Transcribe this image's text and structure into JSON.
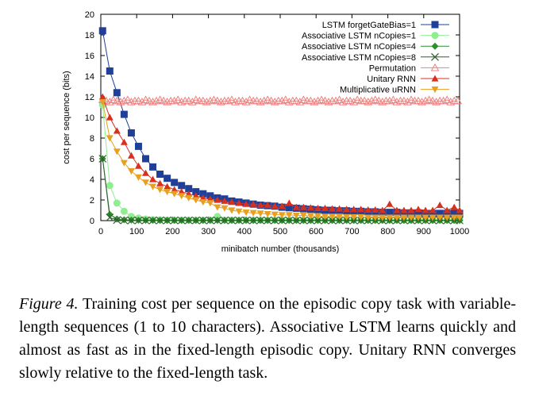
{
  "chart_data": {
    "type": "line",
    "xlabel": "minibatch number (thousands)",
    "ylabel": "cost per sequence (bits)",
    "xlim": [
      0,
      1000
    ],
    "ylim": [
      0,
      20
    ],
    "xticks": [
      0,
      100,
      200,
      300,
      400,
      500,
      600,
      700,
      800,
      900,
      1000
    ],
    "yticks": [
      0,
      2,
      4,
      6,
      8,
      10,
      12,
      14,
      16,
      18,
      20
    ],
    "grid": false,
    "legend_position": "top-right",
    "series": [
      {
        "name": "LSTM forgetGateBias=1",
        "color": "#1f3f99",
        "marker": "square-filled",
        "x": [
          5,
          25,
          45,
          65,
          85,
          105,
          125,
          145,
          165,
          185,
          205,
          225,
          245,
          265,
          285,
          305,
          325,
          345,
          365,
          385,
          405,
          425,
          445,
          465,
          485,
          505,
          525,
          545,
          565,
          585,
          605,
          625,
          645,
          665,
          685,
          705,
          725,
          745,
          765,
          785,
          805,
          825,
          845,
          865,
          885,
          905,
          925,
          945,
          965,
          985,
          1000
        ],
        "y": [
          18.4,
          14.5,
          12.4,
          10.3,
          8.5,
          7.2,
          6.0,
          5.2,
          4.5,
          4.1,
          3.7,
          3.4,
          3.1,
          2.8,
          2.6,
          2.4,
          2.2,
          2.1,
          1.9,
          1.8,
          1.7,
          1.6,
          1.5,
          1.45,
          1.4,
          1.3,
          1.25,
          1.2,
          1.15,
          1.1,
          1.05,
          1.0,
          1.0,
          0.95,
          0.95,
          0.9,
          0.9,
          0.85,
          0.85,
          0.8,
          0.8,
          0.8,
          0.75,
          0.75,
          0.75,
          0.7,
          0.7,
          0.7,
          0.7,
          0.7,
          0.7
        ]
      },
      {
        "name": "Associative LSTM nCopies=1",
        "color": "#90ee90",
        "marker": "circle-filled",
        "x": [
          5,
          25,
          45,
          65,
          85,
          105,
          125,
          145,
          165,
          185,
          205,
          225,
          245,
          265,
          285,
          305,
          325,
          345,
          365,
          385,
          405,
          425,
          445,
          465,
          485,
          505,
          525,
          545,
          565,
          585,
          605,
          625,
          645,
          665,
          685,
          705,
          725,
          745,
          765,
          785,
          805,
          825,
          845,
          865,
          885,
          905,
          925,
          945,
          965,
          985,
          1000
        ],
        "y": [
          11.2,
          3.4,
          1.7,
          0.9,
          0.4,
          0.25,
          0.15,
          0.1,
          0.08,
          0.06,
          0.05,
          0.05,
          0.05,
          0.05,
          0.05,
          0.05,
          0.4,
          0.05,
          0.05,
          0.05,
          0.05,
          0.05,
          0.05,
          0.05,
          0.05,
          0.05,
          0.05,
          0.05,
          0.05,
          0.05,
          0.05,
          0.05,
          0.05,
          0.05,
          0.05,
          0.05,
          0.05,
          0.05,
          0.05,
          0.05,
          0.05,
          0.05,
          0.05,
          0.05,
          0.05,
          0.05,
          0.05,
          0.05,
          0.05,
          0.05,
          0.05
        ]
      },
      {
        "name": "Associative LSTM nCopies=4",
        "color": "#2f8f2f",
        "marker": "diamond-filled",
        "x": [
          5,
          25,
          45,
          65,
          85,
          105,
          125,
          145,
          165,
          185,
          205,
          225,
          245,
          265,
          285,
          305,
          325,
          345,
          365,
          385,
          405,
          425,
          445,
          465,
          485,
          505,
          525,
          545,
          565,
          585,
          605,
          625,
          645,
          665,
          685,
          705,
          725,
          745,
          765,
          785,
          805,
          825,
          845,
          865,
          885,
          905,
          925,
          945,
          965,
          985,
          1000
        ],
        "y": [
          6.0,
          0.6,
          0.15,
          0.08,
          0.05,
          0.04,
          0.03,
          0.03,
          0.03,
          0.03,
          0.03,
          0.03,
          0.03,
          0.03,
          0.03,
          0.03,
          0.03,
          0.03,
          0.03,
          0.03,
          0.03,
          0.03,
          0.03,
          0.03,
          0.03,
          0.03,
          0.03,
          0.03,
          0.03,
          0.03,
          0.03,
          0.03,
          0.03,
          0.03,
          0.03,
          0.03,
          0.03,
          0.03,
          0.03,
          0.03,
          0.03,
          0.03,
          0.03,
          0.03,
          0.03,
          0.03,
          0.03,
          0.03,
          0.03,
          0.03,
          0.03
        ]
      },
      {
        "name": "Associative LSTM nCopies=8",
        "color": "#2f5f2f",
        "marker": "x",
        "x": [
          5,
          25,
          45,
          65,
          85,
          105,
          125,
          145,
          165,
          185,
          205,
          225,
          245,
          265,
          285,
          305,
          325,
          345,
          365,
          385,
          405,
          425,
          445,
          465,
          485,
          505,
          525,
          545,
          565,
          585,
          605,
          625,
          645,
          665,
          685,
          705,
          725,
          745,
          765,
          785,
          805,
          825,
          845,
          865,
          885,
          905,
          925,
          945,
          965,
          985,
          1000
        ],
        "y": [
          6.0,
          0.3,
          0.05,
          0.02,
          0.02,
          0.02,
          0.02,
          0.02,
          0.02,
          0.02,
          0.02,
          0.02,
          0.02,
          0.02,
          0.02,
          0.02,
          0.02,
          0.02,
          0.02,
          0.02,
          0.02,
          0.02,
          0.02,
          0.02,
          0.02,
          0.02,
          0.02,
          0.02,
          0.02,
          0.02,
          0.02,
          0.02,
          0.02,
          0.02,
          0.02,
          0.02,
          0.02,
          0.02,
          0.02,
          0.02,
          0.02,
          0.02,
          0.02,
          0.02,
          0.02,
          0.02,
          0.02,
          0.02,
          0.02,
          0.02,
          0.02
        ]
      },
      {
        "name": "Permutation",
        "color": "#f08080",
        "marker": "triangle-open",
        "x": [
          5,
          15,
          25,
          35,
          45,
          55,
          65,
          75,
          85,
          95,
          105,
          115,
          125,
          135,
          145,
          155,
          165,
          175,
          185,
          195,
          205,
          215,
          225,
          235,
          245,
          255,
          265,
          275,
          285,
          295,
          305,
          315,
          325,
          335,
          345,
          355,
          365,
          375,
          385,
          395,
          405,
          415,
          425,
          435,
          445,
          455,
          465,
          475,
          485,
          495,
          505,
          515,
          525,
          535,
          545,
          555,
          565,
          575,
          585,
          595,
          605,
          615,
          625,
          635,
          645,
          655,
          665,
          675,
          685,
          695,
          705,
          715,
          725,
          735,
          745,
          755,
          765,
          775,
          785,
          795,
          805,
          815,
          825,
          835,
          845,
          855,
          865,
          875,
          885,
          895,
          905,
          915,
          925,
          935,
          945,
          955,
          965,
          975,
          985,
          995
        ],
        "y": [
          11.7,
          11.6,
          11.5,
          11.7,
          11.6,
          11.5,
          11.6,
          11.7,
          11.5,
          11.6,
          11.6,
          11.5,
          11.7,
          11.6,
          11.5,
          11.6,
          11.7,
          11.6,
          11.5,
          11.6,
          11.6,
          11.7,
          11.5,
          11.6,
          11.6,
          11.5,
          11.7,
          11.6,
          11.6,
          11.5,
          11.6,
          11.7,
          11.6,
          11.5,
          11.6,
          11.6,
          11.7,
          11.5,
          11.6,
          11.6,
          11.5,
          11.7,
          11.6,
          11.6,
          11.5,
          11.6,
          11.7,
          11.6,
          11.5,
          11.6,
          11.6,
          11.7,
          11.5,
          11.6,
          11.6,
          11.5,
          11.7,
          11.6,
          11.6,
          11.5,
          11.6,
          11.7,
          11.6,
          11.5,
          11.6,
          11.6,
          11.7,
          11.5,
          11.6,
          11.6,
          11.5,
          11.7,
          11.6,
          11.6,
          11.5,
          11.6,
          11.7,
          11.6,
          11.5,
          11.6,
          11.6,
          11.7,
          11.5,
          11.6,
          11.6,
          11.5,
          11.7,
          11.6,
          11.6,
          11.5,
          11.6,
          11.7,
          11.6,
          11.5,
          11.6,
          11.6,
          11.7,
          11.5,
          11.6,
          11.6
        ]
      },
      {
        "name": "Unitary RNN",
        "color": "#d7301f",
        "marker": "triangle-filled",
        "x": [
          5,
          25,
          45,
          65,
          85,
          105,
          125,
          145,
          165,
          185,
          205,
          225,
          245,
          265,
          285,
          305,
          325,
          345,
          365,
          385,
          405,
          425,
          445,
          465,
          485,
          505,
          525,
          545,
          565,
          585,
          605,
          625,
          645,
          665,
          685,
          705,
          725,
          745,
          765,
          785,
          805,
          825,
          845,
          865,
          885,
          905,
          925,
          945,
          965,
          985,
          1000
        ],
        "y": [
          12.0,
          10.0,
          8.7,
          7.6,
          6.3,
          5.3,
          4.6,
          4.0,
          3.6,
          3.3,
          3.0,
          2.8,
          2.6,
          2.4,
          2.2,
          2.1,
          2.0,
          1.9,
          1.8,
          1.7,
          1.6,
          1.6,
          1.5,
          1.5,
          1.4,
          1.4,
          1.7,
          1.3,
          1.3,
          1.25,
          1.2,
          1.2,
          1.15,
          1.15,
          1.1,
          1.1,
          1.1,
          1.05,
          1.05,
          1.0,
          1.6,
          1.0,
          1.0,
          1.0,
          1.1,
          1.0,
          1.0,
          1.5,
          1.0,
          1.3,
          1.0
        ]
      },
      {
        "name": "Multiplicative uRNN",
        "color": "#e8a020",
        "marker": "triangle-down-filled",
        "x": [
          5,
          25,
          45,
          65,
          85,
          105,
          125,
          145,
          165,
          185,
          205,
          225,
          245,
          265,
          285,
          305,
          325,
          345,
          365,
          385,
          405,
          425,
          445,
          465,
          485,
          505,
          525,
          545,
          565,
          585,
          605,
          625,
          645,
          665,
          685,
          705,
          725,
          745,
          765,
          785,
          805,
          825,
          845,
          865,
          885,
          905,
          925,
          945,
          965,
          985,
          1000
        ],
        "y": [
          11.5,
          8.0,
          6.7,
          5.6,
          4.8,
          4.2,
          3.7,
          3.3,
          3.0,
          2.8,
          2.6,
          2.4,
          2.2,
          2.0,
          1.8,
          1.7,
          1.3,
          1.2,
          1.0,
          0.9,
          0.8,
          0.75,
          0.7,
          0.65,
          0.6,
          0.55,
          0.55,
          0.5,
          0.5,
          0.45,
          0.45,
          0.4,
          0.4,
          0.4,
          0.35,
          0.35,
          0.35,
          0.3,
          0.3,
          0.3,
          0.3,
          0.3,
          0.3,
          0.3,
          0.3,
          0.3,
          0.3,
          0.3,
          0.3,
          0.3,
          0.3
        ]
      }
    ]
  },
  "caption": {
    "figure_label": "Figure 4.",
    "text": "Training cost per sequence on the episodic copy task with variable-length sequences (1 to 10 characters). Associative LSTM learns quickly and almost as fast as in the fixed-length episodic copy.  Unitary RNN converges slowly relative to the fixed-length task."
  }
}
